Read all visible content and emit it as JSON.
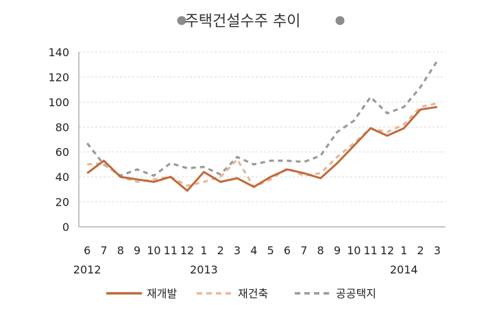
{
  "chart_data": {
    "type": "line",
    "title": "주택건설수주 추이",
    "title_bullet_color": "#8c8c8c",
    "categories": [
      "6",
      "7",
      "8",
      "9",
      "10",
      "11",
      "12",
      "1",
      "2",
      "3",
      "4",
      "5",
      "6",
      "7",
      "8",
      "9",
      "10",
      "11",
      "12",
      "1",
      "2",
      "3"
    ],
    "year_labels": [
      {
        "index": 0,
        "label": "2012"
      },
      {
        "index": 7,
        "label": "2013"
      },
      {
        "index": 19,
        "label": "2014"
      }
    ],
    "ylim": [
      0,
      140
    ],
    "yticks": [
      0,
      20,
      40,
      60,
      80,
      100,
      120,
      140
    ],
    "grid": true,
    "legend_position": "bottom",
    "series": [
      {
        "name": "재개발",
        "color": "#c0693a",
        "style": "solid",
        "values": [
          43,
          53,
          40,
          38,
          36,
          40,
          29,
          44,
          36,
          39,
          32,
          40,
          46,
          43,
          39,
          51,
          65,
          79,
          73,
          79,
          94,
          96
        ]
      },
      {
        "name": "재건축",
        "color": "#e7b79a",
        "style": "dashed",
        "values": [
          50,
          51,
          40,
          36,
          38,
          40,
          33,
          36,
          40,
          54,
          32,
          38,
          47,
          41,
          43,
          56,
          67,
          79,
          76,
          82,
          96,
          99
        ]
      },
      {
        "name": "공공택지",
        "color": "#9a9a9a",
        "style": "dashed",
        "values": [
          67,
          50,
          41,
          46,
          41,
          51,
          47,
          48,
          42,
          56,
          50,
          53,
          53,
          52,
          57,
          76,
          85,
          104,
          91,
          96,
          112,
          133
        ]
      }
    ]
  }
}
